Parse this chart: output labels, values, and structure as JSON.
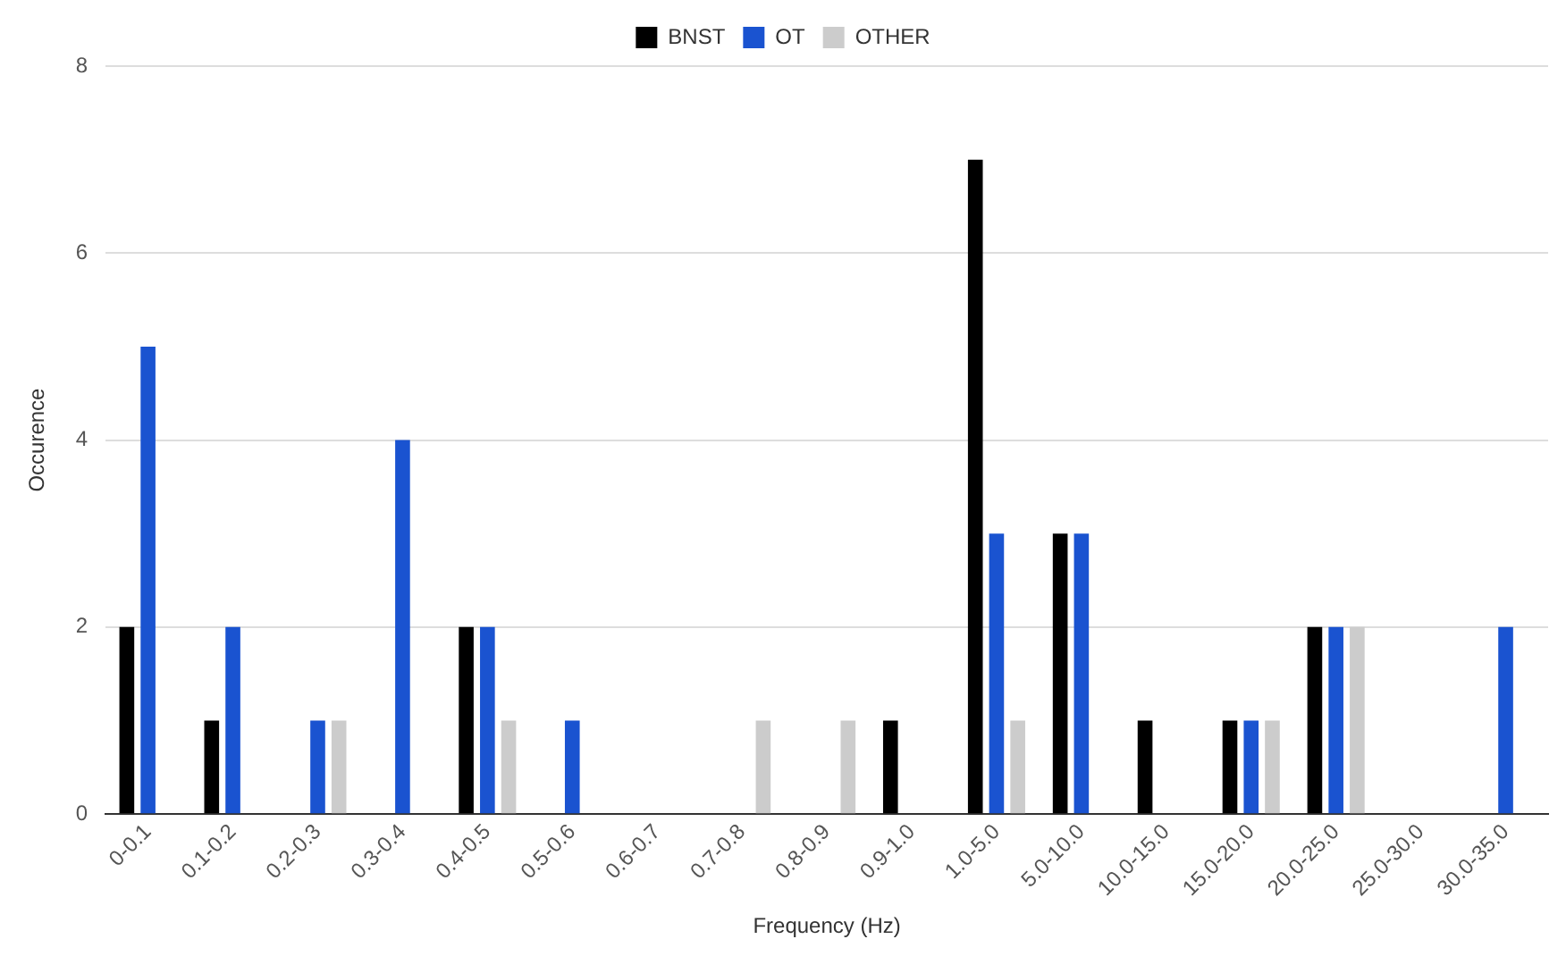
{
  "chart_data": {
    "type": "bar",
    "xlabel": "Frequency (Hz)",
    "ylabel": "Occurence",
    "categories": [
      "0-0.1",
      "0.1-0.2",
      "0.2-0.3",
      "0.3-0.4",
      "0.4-0.5",
      "0.5-0.6",
      "0.6-0.7",
      "0.7-0.8",
      "0.8-0.9",
      "0.9-1.0",
      "1.0-5.0",
      "5.0-10.0",
      "10.0-15.0",
      "15.0-20.0",
      "20.0-25.0",
      "25.0-30.0",
      "30.0-35.0"
    ],
    "series": [
      {
        "name": "BNST",
        "color": "#000000",
        "values": [
          2,
          1,
          0,
          0,
          2,
          0,
          0,
          0,
          0,
          1,
          7,
          3,
          1,
          1,
          2,
          0,
          0
        ]
      },
      {
        "name": "OT",
        "color": "#1a53d0",
        "values": [
          5,
          2,
          1,
          4,
          2,
          1,
          0,
          0,
          0,
          0,
          3,
          3,
          0,
          1,
          2,
          0,
          2
        ]
      },
      {
        "name": "OTHER",
        "color": "#cccccc",
        "values": [
          0,
          0,
          1,
          0,
          1,
          0,
          0,
          1,
          1,
          0,
          1,
          0,
          0,
          1,
          2,
          0,
          0
        ]
      }
    ],
    "ylim": [
      0,
      8
    ],
    "yticks": [
      0,
      2,
      4,
      6,
      8
    ],
    "grid": "y",
    "legend": "top"
  }
}
